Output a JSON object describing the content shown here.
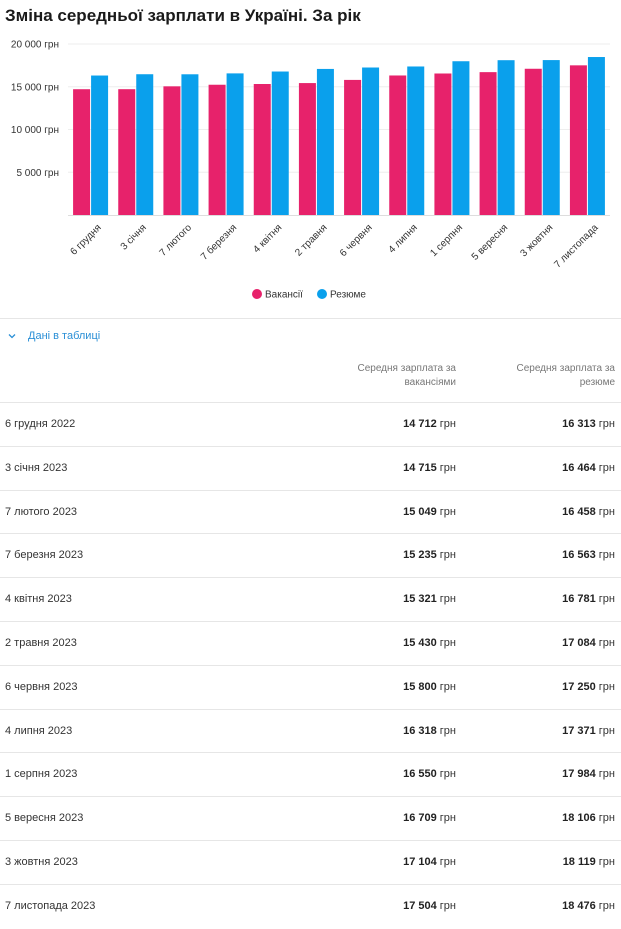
{
  "title": "Зміна середньої зарплати в Україні. За рік",
  "colors": {
    "vacancies": "#e7226b",
    "resumes": "#0aa0ec",
    "grid": "#eeeeee",
    "link": "#2a8fd6"
  },
  "chart_data": {
    "type": "bar",
    "title": "Зміна середньої зарплати в Україні. За рік",
    "xlabel": "",
    "ylabel": "",
    "categories": [
      "6 грудня",
      "3 січня",
      "7 лютого",
      "7 березня",
      "4 квітня",
      "2 травня",
      "6 червня",
      "4 липня",
      "1 серпня",
      "5 вересня",
      "3 жовтня",
      "7 листопада"
    ],
    "series": [
      {
        "name": "Вакансії",
        "values": [
          14712,
          14715,
          15049,
          15235,
          15321,
          15430,
          15800,
          16318,
          16550,
          16709,
          17104,
          17504
        ]
      },
      {
        "name": "Резюме",
        "values": [
          16313,
          16464,
          16458,
          16563,
          16781,
          17084,
          17250,
          17371,
          17984,
          18106,
          18119,
          18476
        ]
      }
    ],
    "ylim": [
      0,
      20000
    ],
    "yticks": [
      5000,
      10000,
      15000,
      20000
    ],
    "ytick_labels": [
      "5 000 грн",
      "10 000 грн",
      "15 000 грн",
      "20 000 грн"
    ],
    "legend_position": "bottom",
    "grid": true
  },
  "table_toggle": {
    "label": "Дані в таблиці",
    "icon": "chevron-down-icon"
  },
  "table": {
    "headers": {
      "vacancies": "Середня зарплата за вакансіями",
      "resumes": "Середня зарплата за резюме"
    },
    "unit": "грн",
    "rows": [
      {
        "date": "6 грудня 2022",
        "vac": "14 712",
        "res": "16 313"
      },
      {
        "date": "3 січня 2023",
        "vac": "14 715",
        "res": "16 464"
      },
      {
        "date": "7 лютого 2023",
        "vac": "15 049",
        "res": "16 458"
      },
      {
        "date": "7 березня 2023",
        "vac": "15 235",
        "res": "16 563"
      },
      {
        "date": "4 квітня 2023",
        "vac": "15 321",
        "res": "16 781"
      },
      {
        "date": "2 травня 2023",
        "vac": "15 430",
        "res": "17 084"
      },
      {
        "date": "6 червня 2023",
        "vac": "15 800",
        "res": "17 250"
      },
      {
        "date": "4 липня 2023",
        "vac": "16 318",
        "res": "17 371"
      },
      {
        "date": "1 серпня 2023",
        "vac": "16 550",
        "res": "17 984"
      },
      {
        "date": "5 вересня 2023",
        "vac": "16 709",
        "res": "18 106"
      },
      {
        "date": "3 жовтня 2023",
        "vac": "17 104",
        "res": "18 119"
      },
      {
        "date": "7 листопада 2023",
        "vac": "17 504",
        "res": "18 476"
      }
    ]
  }
}
